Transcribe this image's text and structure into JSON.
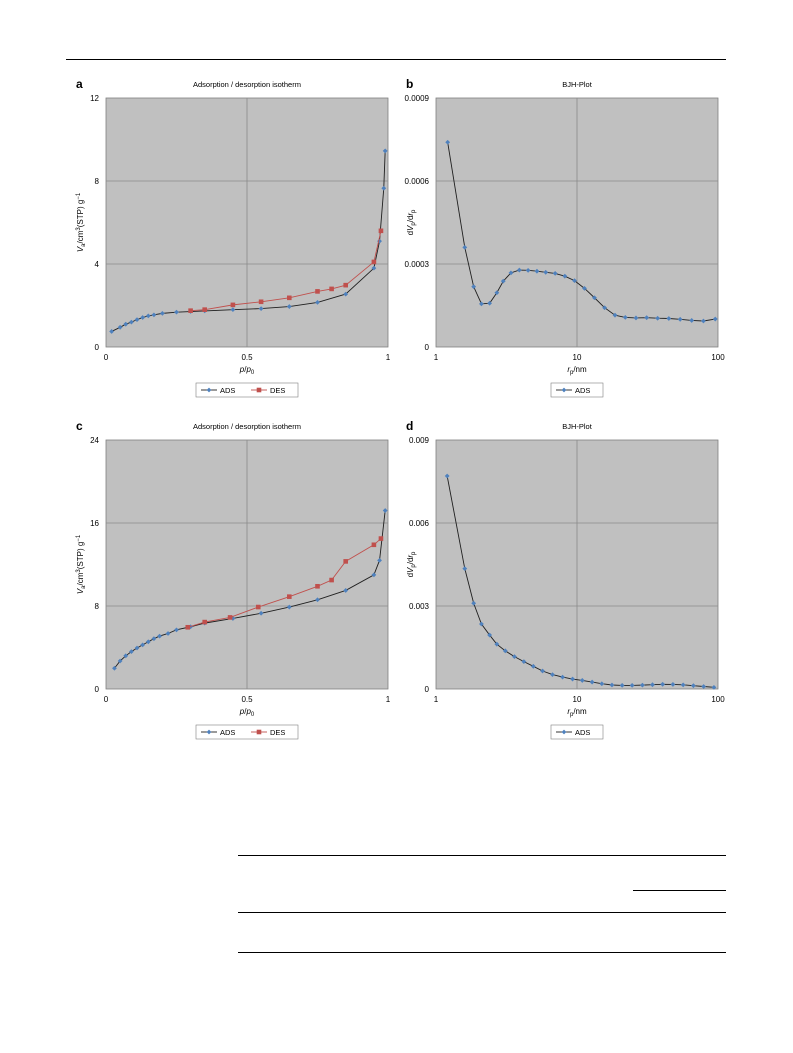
{
  "colors": {
    "plot_bg": "#c0c0c0",
    "grid": "#8a8a8a",
    "ads": "#4f81bd",
    "des": "#c0504d",
    "ads_line": "#1f1f1f"
  },
  "chart_data": [
    {
      "letter": "a",
      "type": "line",
      "title": "Adsorption / desorption isotherm",
      "xlabel": "p/p0",
      "ylabel": "Va/cm3(STP) g-1",
      "xscale": "linear",
      "xlim": [
        0,
        1
      ],
      "ylim": [
        0,
        12
      ],
      "xticks": [
        0,
        0.5,
        1
      ],
      "yticks": [
        0,
        4,
        8,
        12
      ],
      "xtick_labels": [
        "0",
        "0.5",
        "1"
      ],
      "ytick_labels": [
        "0",
        "4",
        "8",
        "12"
      ],
      "grid": true,
      "legend_position": "bottom-center",
      "series": [
        {
          "name": "ADS",
          "marker": "diamond",
          "line_color": "#1f1f1f",
          "marker_color": "#4f81bd",
          "x": [
            0.02,
            0.05,
            0.07,
            0.09,
            0.11,
            0.13,
            0.15,
            0.17,
            0.2,
            0.25,
            0.3,
            0.35,
            0.45,
            0.55,
            0.65,
            0.75,
            0.85,
            0.95,
            0.97,
            0.985,
            0.99
          ],
          "y": [
            0.75,
            0.95,
            1.1,
            1.2,
            1.32,
            1.42,
            1.5,
            1.55,
            1.62,
            1.68,
            1.71,
            1.74,
            1.8,
            1.85,
            1.95,
            2.15,
            2.55,
            3.8,
            5.1,
            7.65,
            9.45
          ]
        },
        {
          "name": "DES",
          "marker": "square",
          "line_color": "#c0504d",
          "marker_color": "#c0504d",
          "x": [
            0.3,
            0.35,
            0.45,
            0.55,
            0.65,
            0.75,
            0.8,
            0.85,
            0.95,
            0.975
          ],
          "y": [
            1.75,
            1.8,
            2.03,
            2.18,
            2.37,
            2.68,
            2.8,
            2.98,
            4.1,
            5.6
          ]
        }
      ]
    },
    {
      "letter": "b",
      "type": "line",
      "title": "BJH-Plot",
      "xlabel": "rp/nm",
      "ylabel": "dVp/drp",
      "xscale": "log",
      "xlim": [
        1,
        100
      ],
      "ylim": [
        0,
        0.0009
      ],
      "xticks": [
        1,
        10,
        100
      ],
      "yticks": [
        0,
        0.0003,
        0.0006,
        0.0009
      ],
      "xtick_labels": [
        "1",
        "10",
        "100"
      ],
      "ytick_labels": [
        "0",
        "0.0003",
        "0.0006",
        "0.0009"
      ],
      "grid": true,
      "legend_position": "bottom-center",
      "series": [
        {
          "name": "ADS",
          "marker": "diamond",
          "line_color": "#1f1f1f",
          "marker_color": "#4f81bd",
          "x": [
            1.21,
            1.6,
            1.85,
            2.1,
            2.4,
            2.7,
            3.0,
            3.4,
            3.9,
            4.5,
            5.2,
            6.0,
            7.0,
            8.2,
            9.6,
            11.3,
            13.3,
            15.7,
            18.6,
            22.0,
            26.2,
            31.2,
            37.3,
            44.8,
            53.9,
            65.1,
            78.8,
            95.6
          ],
          "y": [
            0.00074,
            0.00036,
            0.000218,
            0.000156,
            0.000158,
            0.000196,
            0.000238,
            0.000268,
            0.000278,
            0.000277,
            0.000274,
            0.00027,
            0.000266,
            0.000256,
            0.00024,
            0.000212,
            0.000178,
            0.000142,
            0.000115,
            0.000107,
            0.000105,
            0.000106,
            0.000104,
            0.000103,
            0.0001,
            9.6e-05,
            9.4e-05,
            0.000101
          ]
        }
      ]
    },
    {
      "letter": "c",
      "type": "line",
      "title": "Adsorption / desorption isotherm",
      "xlabel": "p/p0",
      "ylabel": "Va/cm3(STP) g-1",
      "xscale": "linear",
      "xlim": [
        0,
        1
      ],
      "ylim": [
        0,
        24
      ],
      "xticks": [
        0,
        0.5,
        1
      ],
      "yticks": [
        0,
        8,
        16,
        24
      ],
      "xtick_labels": [
        "0",
        "0.5",
        "1"
      ],
      "ytick_labels": [
        "0",
        "8",
        "16",
        "24"
      ],
      "grid": true,
      "legend_position": "bottom-center",
      "series": [
        {
          "name": "ADS",
          "marker": "diamond",
          "line_color": "#1f1f1f",
          "marker_color": "#4f81bd",
          "x": [
            0.03,
            0.05,
            0.07,
            0.09,
            0.11,
            0.13,
            0.15,
            0.17,
            0.19,
            0.22,
            0.25,
            0.3,
            0.35,
            0.45,
            0.55,
            0.65,
            0.75,
            0.85,
            0.95,
            0.97,
            0.99
          ],
          "y": [
            2.0,
            2.7,
            3.2,
            3.6,
            3.95,
            4.25,
            4.55,
            4.85,
            5.1,
            5.35,
            5.7,
            6.0,
            6.35,
            6.8,
            7.3,
            7.9,
            8.6,
            9.5,
            11.0,
            12.4,
            17.2
          ]
        },
        {
          "name": "DES",
          "marker": "square",
          "line_color": "#c0504d",
          "marker_color": "#c0504d",
          "x": [
            0.29,
            0.35,
            0.44,
            0.54,
            0.65,
            0.75,
            0.8,
            0.85,
            0.95,
            0.975
          ],
          "y": [
            5.95,
            6.45,
            6.9,
            7.9,
            8.9,
            9.9,
            10.5,
            12.3,
            13.9,
            14.5
          ]
        }
      ]
    },
    {
      "letter": "d",
      "type": "line",
      "title": "BJH-Plot",
      "xlabel": "rp/nm",
      "ylabel": "dVp/drp",
      "xscale": "log",
      "xlim": [
        1,
        100
      ],
      "ylim": [
        0,
        0.009
      ],
      "xticks": [
        1,
        10,
        100
      ],
      "yticks": [
        0,
        0.003,
        0.006,
        0.009
      ],
      "xtick_labels": [
        "1",
        "10",
        "100"
      ],
      "ytick_labels": [
        "0",
        "0.003",
        "0.006",
        "0.009"
      ],
      "grid": true,
      "legend_position": "bottom-center",
      "series": [
        {
          "name": "ADS",
          "marker": "diamond",
          "line_color": "#1f1f1f",
          "marker_color": "#4f81bd",
          "x": [
            1.2,
            1.6,
            1.85,
            2.1,
            2.4,
            2.7,
            3.1,
            3.6,
            4.2,
            4.9,
            5.7,
            6.7,
            7.9,
            9.3,
            10.9,
            12.8,
            15.0,
            17.7,
            20.9,
            24.6,
            29.1,
            34.3,
            40.5,
            47.9,
            56.6,
            66.9,
            79.1,
            93.6
          ],
          "y": [
            0.0077,
            0.00435,
            0.0031,
            0.00235,
            0.00195,
            0.00162,
            0.00138,
            0.00117,
            0.00099,
            0.00082,
            0.00065,
            0.00052,
            0.00043,
            0.00036,
            0.00031,
            0.00025,
            0.00019,
            0.000145,
            0.00013,
            0.00013,
            0.00014,
            0.000155,
            0.00017,
            0.000165,
            0.00015,
            0.00012,
            9e-05,
            6e-05
          ]
        }
      ]
    }
  ]
}
